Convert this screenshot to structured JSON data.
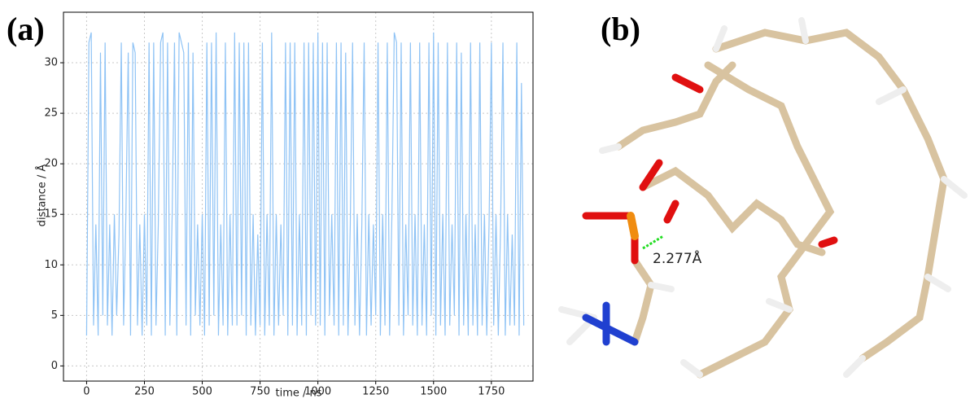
{
  "chart_data": {
    "type": "line",
    "panel_labels": [
      "(a)",
      "(b)"
    ],
    "xlabel": "time / ns",
    "ylabel": "distance / Å",
    "annotation": "2.277Å",
    "xlim": [
      -100,
      1930
    ],
    "ylim": [
      -1.5,
      35
    ],
    "xticks": [
      0,
      250,
      500,
      750,
      1000,
      1250,
      1500,
      1750
    ],
    "yticks": [
      0,
      5,
      10,
      15,
      20,
      25,
      30
    ],
    "grid": true,
    "series": [
      {
        "color": "#8fc3f5",
        "x": [
          0,
          10,
          20,
          30,
          40,
          50,
          60,
          70,
          80,
          90,
          100,
          110,
          120,
          130,
          140,
          150,
          160,
          170,
          180,
          190,
          200,
          210,
          220,
          230,
          240,
          250,
          260,
          270,
          280,
          290,
          300,
          310,
          320,
          330,
          340,
          350,
          360,
          370,
          380,
          390,
          400,
          410,
          420,
          430,
          440,
          450,
          460,
          470,
          480,
          490,
          500,
          510,
          520,
          530,
          540,
          550,
          560,
          570,
          580,
          590,
          600,
          610,
          620,
          630,
          640,
          650,
          660,
          670,
          680,
          690,
          700,
          710,
          720,
          730,
          740,
          750,
          760,
          770,
          780,
          790,
          800,
          810,
          820,
          830,
          840,
          850,
          860,
          870,
          880,
          890,
          900,
          910,
          920,
          930,
          940,
          950,
          960,
          970,
          980,
          990,
          1000,
          1010,
          1020,
          1030,
          1040,
          1050,
          1060,
          1070,
          1080,
          1090,
          1100,
          1110,
          1120,
          1130,
          1140,
          1150,
          1160,
          1170,
          1180,
          1190,
          1200,
          1210,
          1220,
          1230,
          1240,
          1250,
          1260,
          1270,
          1280,
          1290,
          1300,
          1310,
          1320,
          1330,
          1340,
          1350,
          1360,
          1370,
          1380,
          1390,
          1400,
          1410,
          1420,
          1430,
          1440,
          1450,
          1460,
          1470,
          1480,
          1490,
          1500,
          1510,
          1520,
          1530,
          1540,
          1550,
          1560,
          1570,
          1580,
          1590,
          1600,
          1610,
          1620,
          1630,
          1640,
          1650,
          1660,
          1670,
          1680,
          1690,
          1700,
          1710,
          1720,
          1730,
          1740,
          1750,
          1760,
          1770,
          1780,
          1790,
          1800,
          1810,
          1820,
          1830,
          1840,
          1850,
          1860,
          1870,
          1880,
          1890
        ],
        "values": [
          3,
          32,
          33,
          4,
          14,
          3,
          31,
          5,
          32,
          4,
          14,
          3,
          15,
          5,
          13,
          32,
          4,
          15,
          31,
          3,
          32,
          31,
          4,
          14,
          3,
          15,
          4,
          32,
          3,
          32,
          4,
          14,
          32,
          33,
          3,
          32,
          4,
          15,
          32,
          3,
          33,
          32,
          31,
          4,
          32,
          3,
          31,
          5,
          14,
          4,
          15,
          3,
          32,
          4,
          32,
          5,
          33,
          3,
          14,
          4,
          32,
          3,
          15,
          4,
          33,
          4,
          32,
          5,
          32,
          3,
          32,
          4,
          15,
          3,
          13,
          4,
          32,
          3,
          15,
          4,
          33,
          3,
          15,
          4,
          14,
          5,
          32,
          3,
          32,
          4,
          32,
          3,
          15,
          4,
          32,
          3,
          32,
          5,
          32,
          4,
          33,
          4,
          32,
          3,
          32,
          5,
          15,
          4,
          32,
          3,
          32,
          4,
          31,
          3,
          14,
          32,
          4,
          15,
          3,
          14,
          32,
          3,
          15,
          4,
          14,
          5,
          32,
          3,
          15,
          4,
          32,
          3,
          15,
          33,
          32,
          4,
          32,
          3,
          14,
          5,
          32,
          4,
          15,
          3,
          32,
          4,
          14,
          3,
          32,
          5,
          33,
          3,
          32,
          4,
          15,
          3,
          32,
          4,
          14,
          5,
          32,
          3,
          31,
          4,
          15,
          3,
          32,
          4,
          14,
          3,
          32,
          4,
          15,
          3,
          14,
          32,
          4,
          15,
          3,
          14,
          32,
          3,
          15,
          4,
          13,
          4,
          32,
          3,
          28,
          4
        ]
      }
    ]
  }
}
